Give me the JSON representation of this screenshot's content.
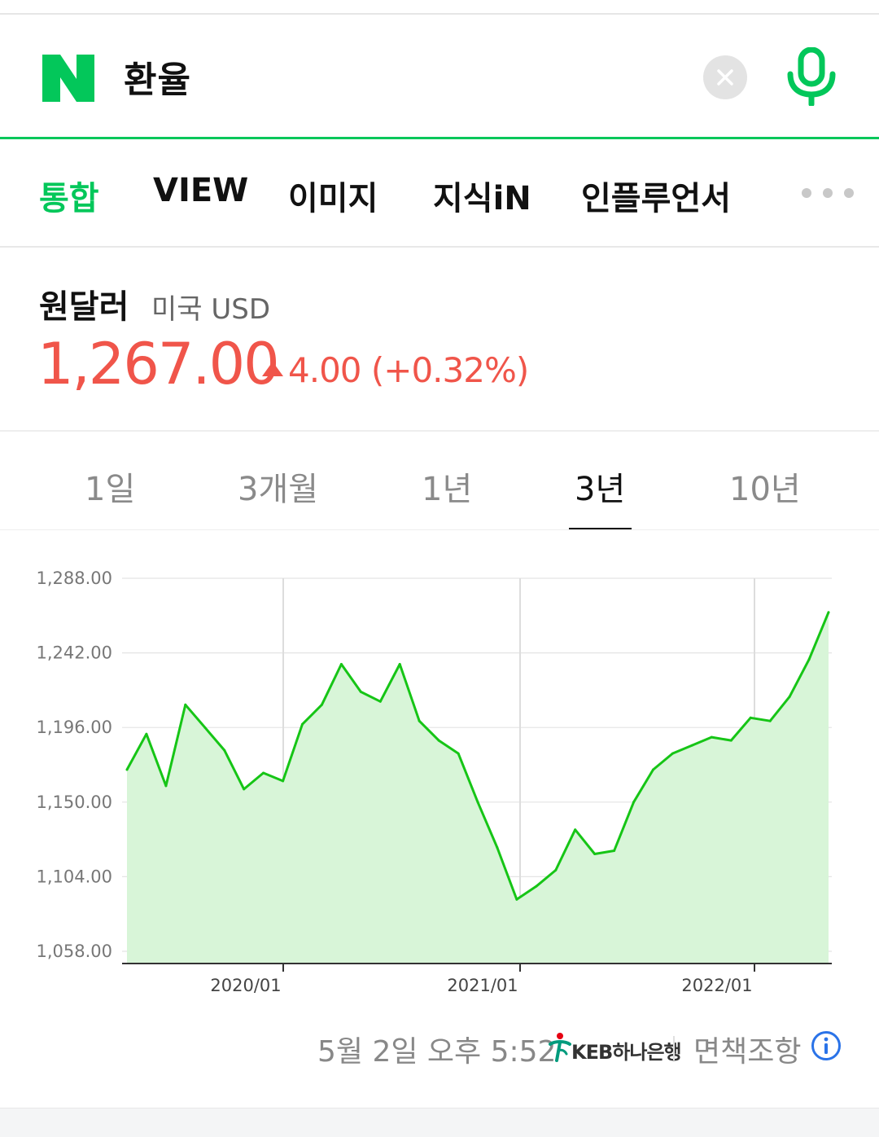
{
  "search": {
    "logo_text": "N",
    "query": "환율",
    "clear_icon": "close-icon",
    "mic_icon": "microphone-icon",
    "accent_color": "#03c75a"
  },
  "tabs": [
    {
      "label": "통합",
      "active": true
    },
    {
      "label": "VIEW",
      "active": false
    },
    {
      "label": "이미지",
      "active": false
    },
    {
      "label": "지식iN",
      "active": false
    },
    {
      "label": "인플루언서",
      "active": false
    }
  ],
  "more_icon": "more-dots-icon",
  "rate": {
    "title": "원달러",
    "subtitle": "미국 USD",
    "value": "1,267.00",
    "change": "4.00 (+0.32%)",
    "direction_icon": "triangle-up-icon",
    "change_color": "#f0554a"
  },
  "periods": [
    {
      "label": "1일",
      "active": false
    },
    {
      "label": "3개월",
      "active": false
    },
    {
      "label": "1년",
      "active": false
    },
    {
      "label": "3년",
      "active": true
    },
    {
      "label": "10년",
      "active": false
    }
  ],
  "chart_data": {
    "type": "area",
    "title": "",
    "xlabel": "",
    "ylabel": "",
    "ylim": [
      1058,
      1288
    ],
    "y_ticks": [
      "1,288.00",
      "1,242.00",
      "1,196.00",
      "1,150.00",
      "1,104.00",
      "1,058.00"
    ],
    "x_ticks": [
      "2020/01",
      "2021/01",
      "2022/01"
    ],
    "grid": true,
    "line_color": "#16c516",
    "fill_color": "#d8f5d8",
    "x": [
      "2019/05",
      "2019/06",
      "2019/07",
      "2019/08",
      "2019/09",
      "2019/10",
      "2019/11",
      "2019/12",
      "2020/01",
      "2020/02",
      "2020/03",
      "2020/04",
      "2020/05",
      "2020/06",
      "2020/07",
      "2020/08",
      "2020/09",
      "2020/10",
      "2020/11",
      "2020/12",
      "2021/01",
      "2021/02",
      "2021/03",
      "2021/04",
      "2021/05",
      "2021/06",
      "2021/07",
      "2021/08",
      "2021/09",
      "2021/10",
      "2021/11",
      "2021/12",
      "2022/01",
      "2022/02",
      "2022/03",
      "2022/04",
      "2022/05"
    ],
    "values": [
      1170,
      1192,
      1160,
      1210,
      1196,
      1182,
      1158,
      1168,
      1163,
      1198,
      1210,
      1235,
      1218,
      1212,
      1235,
      1200,
      1188,
      1180,
      1150,
      1122,
      1090,
      1098,
      1108,
      1133,
      1118,
      1120,
      1150,
      1170,
      1180,
      1185,
      1190,
      1188,
      1202,
      1200,
      1215,
      1238,
      1267
    ]
  },
  "footer": {
    "timestamp": "5월 2일 오후 5:52",
    "bank_name": "KEB하나은행",
    "bank_icon": "keb-hana-logo-icon",
    "disclaimer": "면책조항",
    "info_icon": "info-icon"
  }
}
